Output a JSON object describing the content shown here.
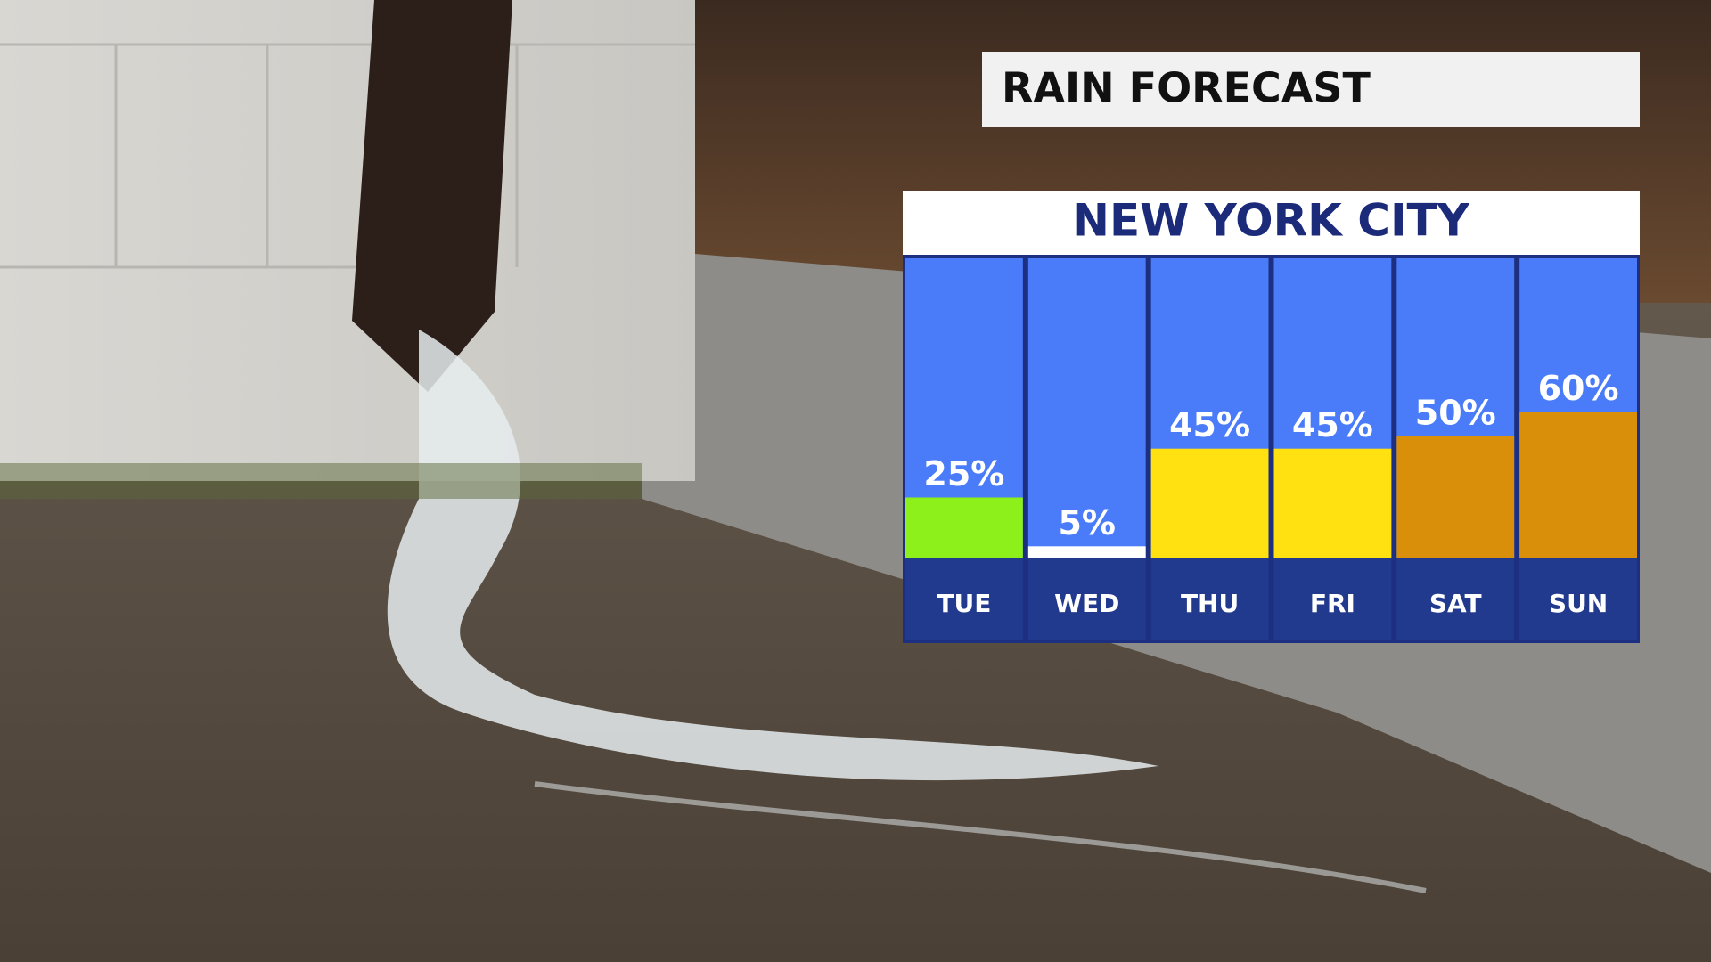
{
  "header": {
    "title": "RAIN FORECAST"
  },
  "chart_data": {
    "type": "bar",
    "title": "NEW YORK CITY",
    "categories": [
      "TUE",
      "WED",
      "THU",
      "FRI",
      "SAT",
      "SUN"
    ],
    "values": [
      25,
      5,
      45,
      45,
      50,
      60
    ],
    "value_labels": [
      "25%",
      "5%",
      "45%",
      "45%",
      "50%",
      "60%"
    ],
    "colors": [
      "#8ef01a",
      "#ffffff",
      "#ffe011",
      "#ffe011",
      "#da8f0a",
      "#da8f0a"
    ]
  }
}
